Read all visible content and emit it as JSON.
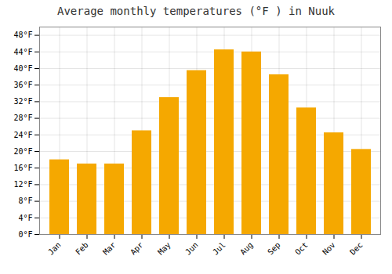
{
  "chart_data": {
    "type": "bar",
    "title": "Average monthly temperatures (°F ) in Nuuk",
    "categories": [
      "Jan",
      "Feb",
      "Mar",
      "Apr",
      "May",
      "Jun",
      "Jul",
      "Aug",
      "Sep",
      "Oct",
      "Nov",
      "Dec"
    ],
    "values": [
      18,
      17,
      17,
      25,
      33,
      39.5,
      44.5,
      44,
      38.5,
      30.5,
      24.5,
      20.5
    ],
    "color": "#F5A800",
    "ylim": [
      0,
      50
    ],
    "yticks": [
      {
        "value": 0,
        "label": "0°F"
      },
      {
        "value": 4,
        "label": "4°F"
      },
      {
        "value": 8,
        "label": "8°F"
      },
      {
        "value": 12,
        "label": "12°F"
      },
      {
        "value": 16,
        "label": "16°F"
      },
      {
        "value": 20,
        "label": "20°F"
      },
      {
        "value": 24,
        "label": "24°F"
      },
      {
        "value": 28,
        "label": "28°F"
      },
      {
        "value": 32,
        "label": "32°F"
      },
      {
        "value": 36,
        "label": "36°F"
      },
      {
        "value": 40,
        "label": "40°F"
      },
      {
        "value": 44,
        "label": "44°F"
      },
      {
        "value": 48,
        "label": "48°F"
      }
    ],
    "grid": true
  }
}
